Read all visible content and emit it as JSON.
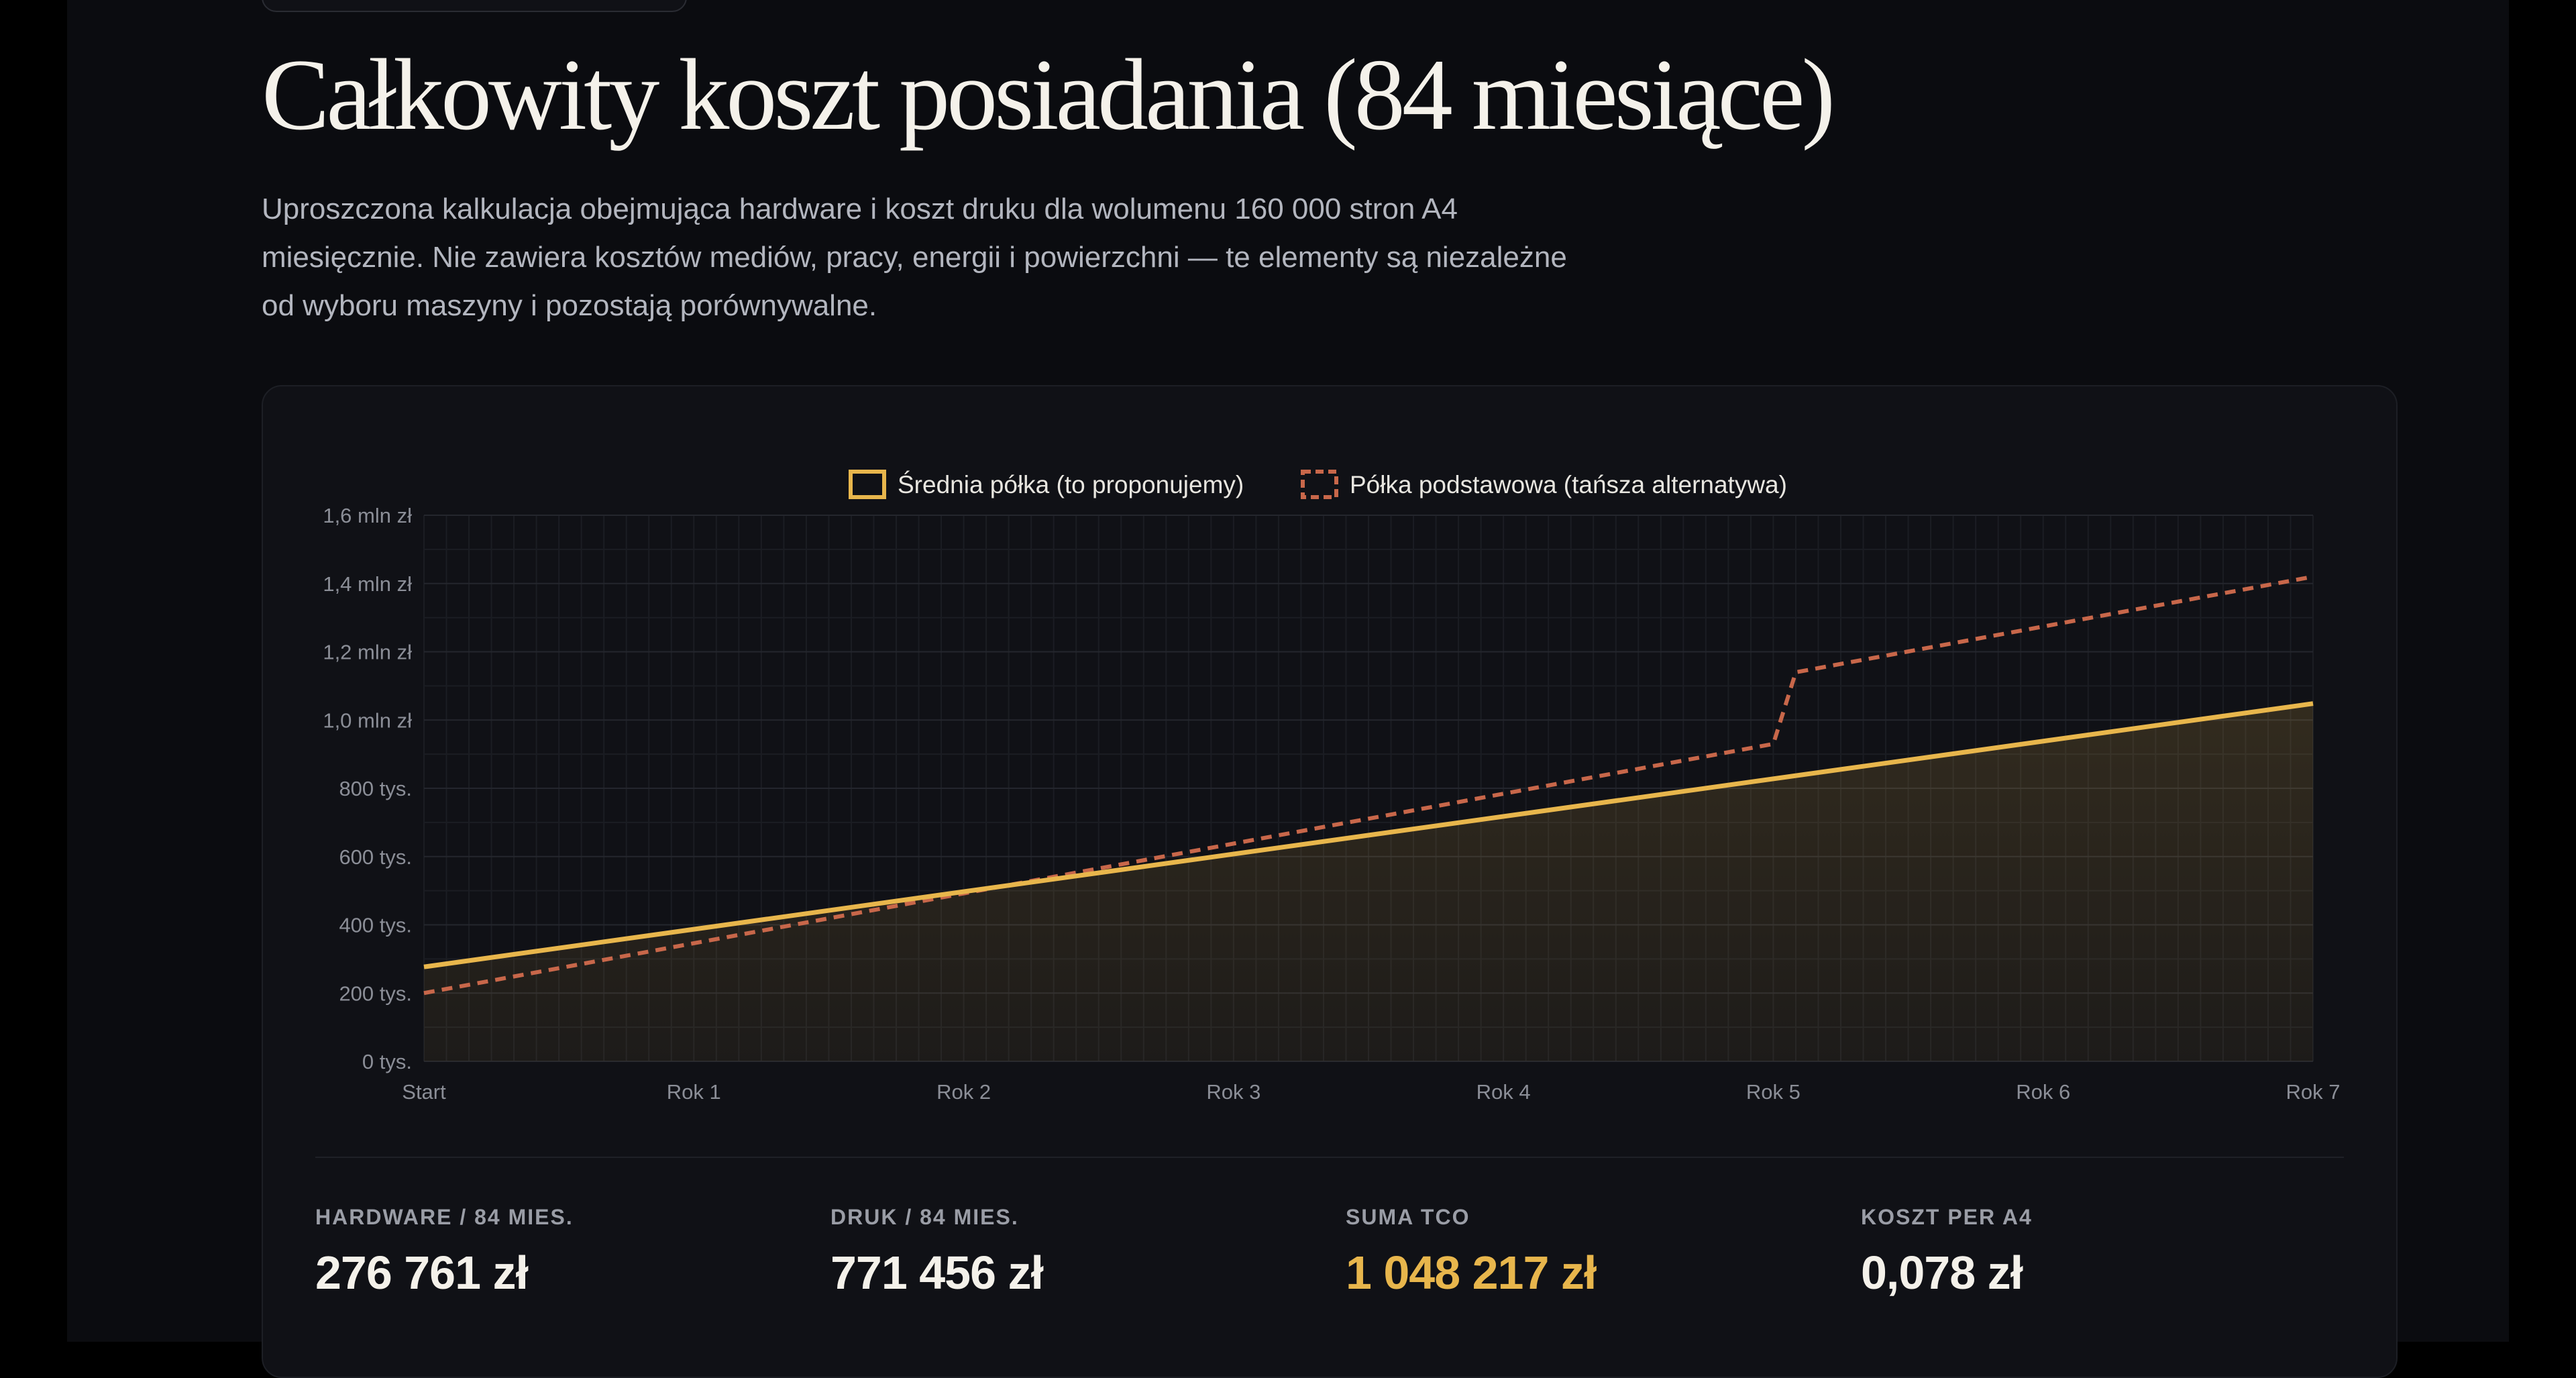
{
  "page": {
    "title": "Całkowity koszt posiadania (84 miesiące)",
    "description": "Uproszczona kalkulacja obejmująca hardware i koszt druku dla wolumenu 160 000 stron A4 miesięcznie. Nie zawiera kosztów mediów, pracy, energii i powierzchni — te elementy są niezależne od wyboru maszyny i pozostają porównywalne."
  },
  "chart_data": {
    "type": "line",
    "title": "",
    "xlabel": "",
    "ylabel": "",
    "x_min": 0,
    "x_max": 84,
    "ylim": [
      0,
      1600000
    ],
    "grid": true,
    "legend_position": "top-center",
    "x_ticks": [
      {
        "value": 0,
        "label": "Start"
      },
      {
        "value": 12,
        "label": "Rok 1"
      },
      {
        "value": 24,
        "label": "Rok 2"
      },
      {
        "value": 36,
        "label": "Rok 3"
      },
      {
        "value": 48,
        "label": "Rok 4"
      },
      {
        "value": 60,
        "label": "Rok 5"
      },
      {
        "value": 72,
        "label": "Rok 6"
      },
      {
        "value": 84,
        "label": "Rok 7"
      }
    ],
    "y_ticks": [
      {
        "value": 0,
        "label": "0 tys."
      },
      {
        "value": 200000,
        "label": "200 tys."
      },
      {
        "value": 400000,
        "label": "400 tys."
      },
      {
        "value": 600000,
        "label": "600 tys."
      },
      {
        "value": 800000,
        "label": "800 tys."
      },
      {
        "value": 1000000,
        "label": "1,0 mln zł"
      },
      {
        "value": 1200000,
        "label": "1,2 mln zł"
      },
      {
        "value": 1400000,
        "label": "1,4 mln zł"
      },
      {
        "value": 1600000,
        "label": "1,6 mln zł"
      }
    ],
    "series": [
      {
        "name": "Średnia półka (to proponujemy)",
        "color": "#e8b64c",
        "style": "solid",
        "filled": true,
        "points": [
          [
            0,
            276761
          ],
          [
            84,
            1048217
          ]
        ]
      },
      {
        "name": "Półka podstawowa (tańsza alternatywa)",
        "color": "#c8674a",
        "style": "dashed",
        "filled": false,
        "points": [
          [
            0,
            200000
          ],
          [
            60,
            930000
          ],
          [
            61,
            1140000
          ],
          [
            84,
            1420000
          ]
        ]
      }
    ]
  },
  "stats": [
    {
      "label": "HARDWARE / 84 MIES.",
      "value": "276 761 zł",
      "accent": false
    },
    {
      "label": "DRUK / 84 MIES.",
      "value": "771 456 zł",
      "accent": false
    },
    {
      "label": "SUMA TCO",
      "value": "1 048 217 zł",
      "accent": true
    },
    {
      "label": "KOSZT PER A4",
      "value": "0,078 zł",
      "accent": false
    }
  ],
  "colors": {
    "accent": "#e8b64c",
    "alternative": "#c8674a",
    "background": "#0b0c10",
    "card": "#101116"
  }
}
